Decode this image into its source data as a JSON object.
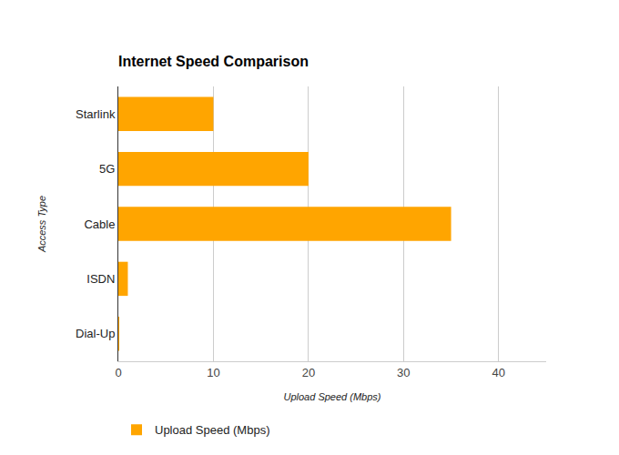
{
  "chart_data": {
    "type": "bar",
    "title": "Internet Speed Comparison",
    "orientation": "horizontal",
    "categories": [
      "Starlink",
      "5G",
      "Cable",
      "ISDN",
      "Dial-Up"
    ],
    "series": [
      {
        "name": "Upload Speed (Mbps)",
        "color": "#ffa500",
        "values": [
          10,
          20,
          35,
          1,
          0.1
        ]
      }
    ],
    "x_label": "Upload Speed (Mbps)",
    "y_label": "Access Type",
    "xlim": [
      0,
      45
    ],
    "xticks": [
      0,
      10,
      20,
      30,
      40
    ],
    "grid": true,
    "legend": "bottom"
  }
}
